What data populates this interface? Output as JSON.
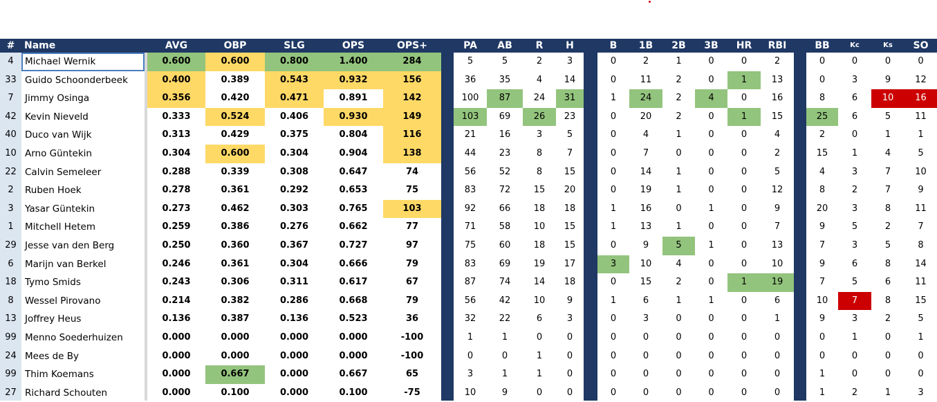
{
  "headers": [
    "#",
    "Name",
    "AVG",
    "OBP",
    "SLG",
    "OPS",
    "OPS+",
    "PA",
    "AB",
    "R",
    "H",
    "B",
    "1B",
    "2B",
    "3B",
    "HR",
    "RBI",
    "BB",
    "Kc",
    "Ks",
    "SO"
  ],
  "rows": [
    {
      "num": "4",
      "name": "Michael Wernik",
      "avg": "0.600",
      "obp": "0.600",
      "slg": "0.800",
      "ops": "1.400",
      "opsp": "284",
      "pa": "5",
      "ab": "5",
      "r": "2",
      "h": "3",
      "b": "0",
      "b1": "2",
      "b2": "1",
      "b3": "0",
      "hr": "0",
      "rbi": "2",
      "bb": "0",
      "kc": "0",
      "ks": "0",
      "so": "0"
    },
    {
      "num": "33",
      "name": "Guido Schoonderbeek",
      "avg": "0.400",
      "obp": "0.389",
      "slg": "0.543",
      "ops": "0.932",
      "opsp": "156",
      "pa": "36",
      "ab": "35",
      "r": "4",
      "h": "14",
      "b": "0",
      "b1": "11",
      "b2": "2",
      "b3": "0",
      "hr": "1",
      "rbi": "13",
      "bb": "0",
      "kc": "3",
      "ks": "9",
      "so": "12"
    },
    {
      "num": "7",
      "name": "Jimmy Osinga",
      "avg": "0.356",
      "obp": "0.420",
      "slg": "0.471",
      "ops": "0.891",
      "opsp": "142",
      "pa": "100",
      "ab": "87",
      "r": "24",
      "h": "31",
      "b": "1",
      "b1": "24",
      "b2": "2",
      "b3": "4",
      "hr": "0",
      "rbi": "16",
      "bb": "8",
      "kc": "6",
      "ks": "10",
      "so": "16"
    },
    {
      "num": "42",
      "name": "Kevin Nieveld",
      "avg": "0.333",
      "obp": "0.524",
      "slg": "0.406",
      "ops": "0.930",
      "opsp": "149",
      "pa": "103",
      "ab": "69",
      "r": "26",
      "h": "23",
      "b": "0",
      "b1": "20",
      "b2": "2",
      "b3": "0",
      "hr": "1",
      "rbi": "15",
      "bb": "25",
      "kc": "6",
      "ks": "5",
      "so": "11"
    },
    {
      "num": "40",
      "name": "Duco van Wijk",
      "avg": "0.313",
      "obp": "0.429",
      "slg": "0.375",
      "ops": "0.804",
      "opsp": "116",
      "pa": "21",
      "ab": "16",
      "r": "3",
      "h": "5",
      "b": "0",
      "b1": "4",
      "b2": "1",
      "b3": "0",
      "hr": "0",
      "rbi": "4",
      "bb": "2",
      "kc": "0",
      "ks": "1",
      "so": "1"
    },
    {
      "num": "10",
      "name": "Arno Güntekin",
      "avg": "0.304",
      "obp": "0.600",
      "slg": "0.304",
      "ops": "0.904",
      "opsp": "138",
      "pa": "44",
      "ab": "23",
      "r": "8",
      "h": "7",
      "b": "0",
      "b1": "7",
      "b2": "0",
      "b3": "0",
      "hr": "0",
      "rbi": "2",
      "bb": "15",
      "kc": "1",
      "ks": "4",
      "so": "5"
    },
    {
      "num": "22",
      "name": "Calvin Semeleer",
      "avg": "0.288",
      "obp": "0.339",
      "slg": "0.308",
      "ops": "0.647",
      "opsp": "74",
      "pa": "56",
      "ab": "52",
      "r": "8",
      "h": "15",
      "b": "0",
      "b1": "14",
      "b2": "1",
      "b3": "0",
      "hr": "0",
      "rbi": "5",
      "bb": "4",
      "kc": "3",
      "ks": "7",
      "so": "10"
    },
    {
      "num": "2",
      "name": "Ruben Hoek",
      "avg": "0.278",
      "obp": "0.361",
      "slg": "0.292",
      "ops": "0.653",
      "opsp": "75",
      "pa": "83",
      "ab": "72",
      "r": "15",
      "h": "20",
      "b": "0",
      "b1": "19",
      "b2": "1",
      "b3": "0",
      "hr": "0",
      "rbi": "12",
      "bb": "8",
      "kc": "2",
      "ks": "7",
      "so": "9"
    },
    {
      "num": "3",
      "name": "Yasar Güntekin",
      "avg": "0.273",
      "obp": "0.462",
      "slg": "0.303",
      "ops": "0.765",
      "opsp": "103",
      "pa": "92",
      "ab": "66",
      "r": "18",
      "h": "18",
      "b": "1",
      "b1": "16",
      "b2": "0",
      "b3": "1",
      "hr": "0",
      "rbi": "9",
      "bb": "20",
      "kc": "3",
      "ks": "8",
      "so": "11"
    },
    {
      "num": "1",
      "name": "Mitchell Hetem",
      "avg": "0.259",
      "obp": "0.386",
      "slg": "0.276",
      "ops": "0.662",
      "opsp": "77",
      "pa": "71",
      "ab": "58",
      "r": "10",
      "h": "15",
      "b": "1",
      "b1": "13",
      "b2": "1",
      "b3": "0",
      "hr": "0",
      "rbi": "7",
      "bb": "9",
      "kc": "5",
      "ks": "2",
      "so": "7"
    },
    {
      "num": "29",
      "name": "Jesse van den Berg",
      "avg": "0.250",
      "obp": "0.360",
      "slg": "0.367",
      "ops": "0.727",
      "opsp": "97",
      "pa": "75",
      "ab": "60",
      "r": "18",
      "h": "15",
      "b": "0",
      "b1": "9",
      "b2": "5",
      "b3": "1",
      "hr": "0",
      "rbi": "13",
      "bb": "7",
      "kc": "3",
      "ks": "5",
      "so": "8"
    },
    {
      "num": "6",
      "name": "Marijn van Berkel",
      "avg": "0.246",
      "obp": "0.361",
      "slg": "0.304",
      "ops": "0.666",
      "opsp": "79",
      "pa": "83",
      "ab": "69",
      "r": "19",
      "h": "17",
      "b": "3",
      "b1": "10",
      "b2": "4",
      "b3": "0",
      "hr": "0",
      "rbi": "10",
      "bb": "9",
      "kc": "6",
      "ks": "8",
      "so": "14"
    },
    {
      "num": "18",
      "name": "Tymo Smids",
      "avg": "0.243",
      "obp": "0.306",
      "slg": "0.311",
      "ops": "0.617",
      "opsp": "67",
      "pa": "87",
      "ab": "74",
      "r": "14",
      "h": "18",
      "b": "0",
      "b1": "15",
      "b2": "2",
      "b3": "0",
      "hr": "1",
      "rbi": "19",
      "bb": "7",
      "kc": "5",
      "ks": "6",
      "so": "11"
    },
    {
      "num": "8",
      "name": "Wessel Pirovano",
      "avg": "0.214",
      "obp": "0.382",
      "slg": "0.286",
      "ops": "0.668",
      "opsp": "79",
      "pa": "56",
      "ab": "42",
      "r": "10",
      "h": "9",
      "b": "1",
      "b1": "6",
      "b2": "1",
      "b3": "1",
      "hr": "0",
      "rbi": "6",
      "bb": "10",
      "kc": "7",
      "ks": "8",
      "so": "15"
    },
    {
      "num": "13",
      "name": "Joffrey Heus",
      "avg": "0.136",
      "obp": "0.387",
      "slg": "0.136",
      "ops": "0.523",
      "opsp": "36",
      "pa": "32",
      "ab": "22",
      "r": "6",
      "h": "3",
      "b": "0",
      "b1": "3",
      "b2": "0",
      "b3": "0",
      "hr": "0",
      "rbi": "1",
      "bb": "9",
      "kc": "3",
      "ks": "2",
      "so": "5"
    },
    {
      "num": "99",
      "name": "Menno Soederhuizen",
      "avg": "0.000",
      "obp": "0.000",
      "slg": "0.000",
      "ops": "0.000",
      "opsp": "-100",
      "pa": "1",
      "ab": "1",
      "r": "0",
      "h": "0",
      "b": "0",
      "b1": "0",
      "b2": "0",
      "b3": "0",
      "hr": "0",
      "rbi": "0",
      "bb": "0",
      "kc": "1",
      "ks": "0",
      "so": "1"
    },
    {
      "num": "24",
      "name": "Mees de By",
      "avg": "0.000",
      "obp": "0.000",
      "slg": "0.000",
      "ops": "0.000",
      "opsp": "-100",
      "pa": "0",
      "ab": "0",
      "r": "1",
      "h": "0",
      "b": "0",
      "b1": "0",
      "b2": "0",
      "b3": "0",
      "hr": "0",
      "rbi": "0",
      "bb": "0",
      "kc": "0",
      "ks": "0",
      "so": "0"
    },
    {
      "num": "99",
      "name": "Thim Koemans",
      "avg": "0.000",
      "obp": "0.667",
      "slg": "0.000",
      "ops": "0.667",
      "opsp": "65",
      "pa": "3",
      "ab": "1",
      "r": "1",
      "h": "0",
      "b": "0",
      "b1": "0",
      "b2": "0",
      "b3": "0",
      "hr": "0",
      "rbi": "0",
      "bb": "1",
      "kc": "0",
      "ks": "0",
      "so": "0"
    },
    {
      "num": "27",
      "name": "Richard Schouten",
      "avg": "0.000",
      "obp": "0.100",
      "slg": "0.000",
      "ops": "0.100",
      "opsp": "-75",
      "pa": "10",
      "ab": "9",
      "r": "0",
      "h": "0",
      "b": "0",
      "b1": "0",
      "b2": "0",
      "b3": "0",
      "hr": "0",
      "rbi": "0",
      "bb": "1",
      "kc": "2",
      "ks": "1",
      "so": "3"
    }
  ],
  "highlights": [
    {
      "row": 0,
      "col": "avg",
      "color": "g"
    },
    {
      "row": 0,
      "col": "obp",
      "color": "y"
    },
    {
      "row": 0,
      "col": "slg",
      "color": "g"
    },
    {
      "row": 0,
      "col": "ops",
      "color": "g"
    },
    {
      "row": 0,
      "col": "opsp",
      "color": "g"
    },
    {
      "row": 1,
      "col": "avg",
      "color": "y"
    },
    {
      "row": 1,
      "col": "slg",
      "color": "y"
    },
    {
      "row": 1,
      "col": "ops",
      "color": "y"
    },
    {
      "row": 1,
      "col": "opsp",
      "color": "y"
    },
    {
      "row": 1,
      "col": "hr",
      "color": "g"
    },
    {
      "row": 2,
      "col": "avg",
      "color": "y"
    },
    {
      "row": 2,
      "col": "slg",
      "color": "y"
    },
    {
      "row": 2,
      "col": "opsp",
      "color": "y"
    },
    {
      "row": 2,
      "col": "ab",
      "color": "g"
    },
    {
      "row": 2,
      "col": "h",
      "color": "g"
    },
    {
      "row": 2,
      "col": "b1",
      "color": "g"
    },
    {
      "row": 2,
      "col": "b3",
      "color": "g"
    },
    {
      "row": 2,
      "col": "ks",
      "color": "r"
    },
    {
      "row": 2,
      "col": "so",
      "color": "r"
    },
    {
      "row": 3,
      "col": "obp",
      "color": "y"
    },
    {
      "row": 3,
      "col": "ops",
      "color": "y"
    },
    {
      "row": 3,
      "col": "opsp",
      "color": "y"
    },
    {
      "row": 3,
      "col": "pa",
      "color": "g"
    },
    {
      "row": 3,
      "col": "r",
      "color": "g"
    },
    {
      "row": 3,
      "col": "hr",
      "color": "g"
    },
    {
      "row": 3,
      "col": "bb",
      "color": "g"
    },
    {
      "row": 4,
      "col": "opsp",
      "color": "y"
    },
    {
      "row": 5,
      "col": "obp",
      "color": "y"
    },
    {
      "row": 5,
      "col": "opsp",
      "color": "y"
    },
    {
      "row": 8,
      "col": "opsp",
      "color": "y"
    },
    {
      "row": 10,
      "col": "b2",
      "color": "g"
    },
    {
      "row": 11,
      "col": "b",
      "color": "g"
    },
    {
      "row": 12,
      "col": "hr",
      "color": "g"
    },
    {
      "row": 12,
      "col": "rbi",
      "color": "g"
    },
    {
      "row": 13,
      "col": "kc",
      "color": "r"
    },
    {
      "row": 17,
      "col": "obp",
      "color": "g"
    }
  ],
  "colors": {
    "header_bg": "#1f3864",
    "highlight_yellow": "#ffd966",
    "highlight_green": "#93c47d",
    "highlight_red": "#cc0000",
    "index_column_bg": "#dce6f1"
  }
}
